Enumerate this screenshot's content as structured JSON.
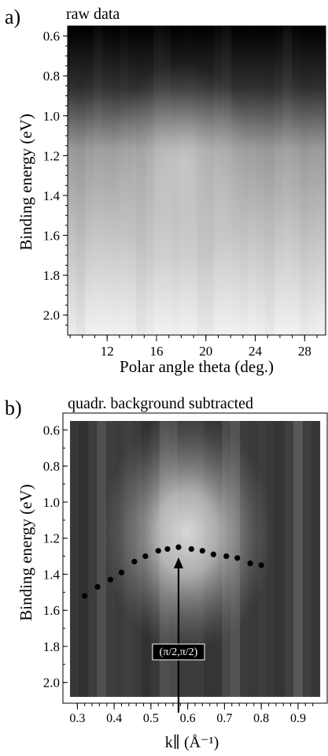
{
  "chart_data": [
    {
      "panel_label": "a)",
      "type": "heatmap",
      "title": "raw data",
      "xlabel": "Polar angle theta (deg.)",
      "ylabel": "Binding energy (eV)",
      "xlim": [
        8.8,
        29.7
      ],
      "ylim": [
        0.55,
        2.1
      ],
      "x_ticks": [
        "12",
        "16",
        "20",
        "24",
        "28"
      ],
      "y_ticks": [
        "0.6",
        "0.8",
        "1.0",
        "1.2",
        "1.4",
        "1.6",
        "1.8",
        "2.0"
      ],
      "x_tick_values": [
        12,
        16,
        20,
        24,
        28
      ],
      "y_tick_values": [
        0.6,
        0.8,
        1.0,
        1.2,
        1.4,
        1.6,
        1.8,
        2.0
      ],
      "colormap": "grayscale",
      "intensity_peak": {
        "x": 17.5,
        "y": 1.25
      }
    },
    {
      "panel_label": "b)",
      "type": "heatmap",
      "title": "quadr. background subtracted",
      "xlabel": "k∥ (Å⁻¹)",
      "ylabel": "Binding energy (eV)",
      "xlim": [
        0.28,
        0.96
      ],
      "ylim": [
        0.55,
        2.08
      ],
      "x_ticks": [
        "0.3",
        "0.4",
        "0.5",
        "0.6",
        "0.7",
        "0.8",
        "0.9"
      ],
      "y_ticks": [
        "0.6",
        "0.8",
        "1.0",
        "1.2",
        "1.4",
        "1.6",
        "1.8",
        "2.0"
      ],
      "x_tick_values": [
        0.3,
        0.4,
        0.5,
        0.6,
        0.7,
        0.8,
        0.9
      ],
      "y_tick_values": [
        0.6,
        0.8,
        1.0,
        1.2,
        1.4,
        1.6,
        1.8,
        2.0
      ],
      "colormap": "grayscale",
      "intensity_peak": {
        "x": 0.6,
        "y": 1.25
      },
      "series": [
        {
          "x": [
            0.32,
            0.355,
            0.39,
            0.42,
            0.455,
            0.485,
            0.52,
            0.545,
            0.575,
            0.61,
            0.64,
            0.67,
            0.705,
            0.735,
            0.77,
            0.8
          ],
          "y": [
            1.52,
            1.47,
            1.43,
            1.39,
            1.33,
            1.3,
            1.27,
            1.26,
            1.25,
            1.26,
            1.27,
            1.29,
            1.3,
            1.31,
            1.34,
            1.35
          ]
        }
      ],
      "annotation": {
        "text": "(π/2,π/2)",
        "x": 0.575,
        "arrow_to_y": 1.28
      }
    }
  ]
}
